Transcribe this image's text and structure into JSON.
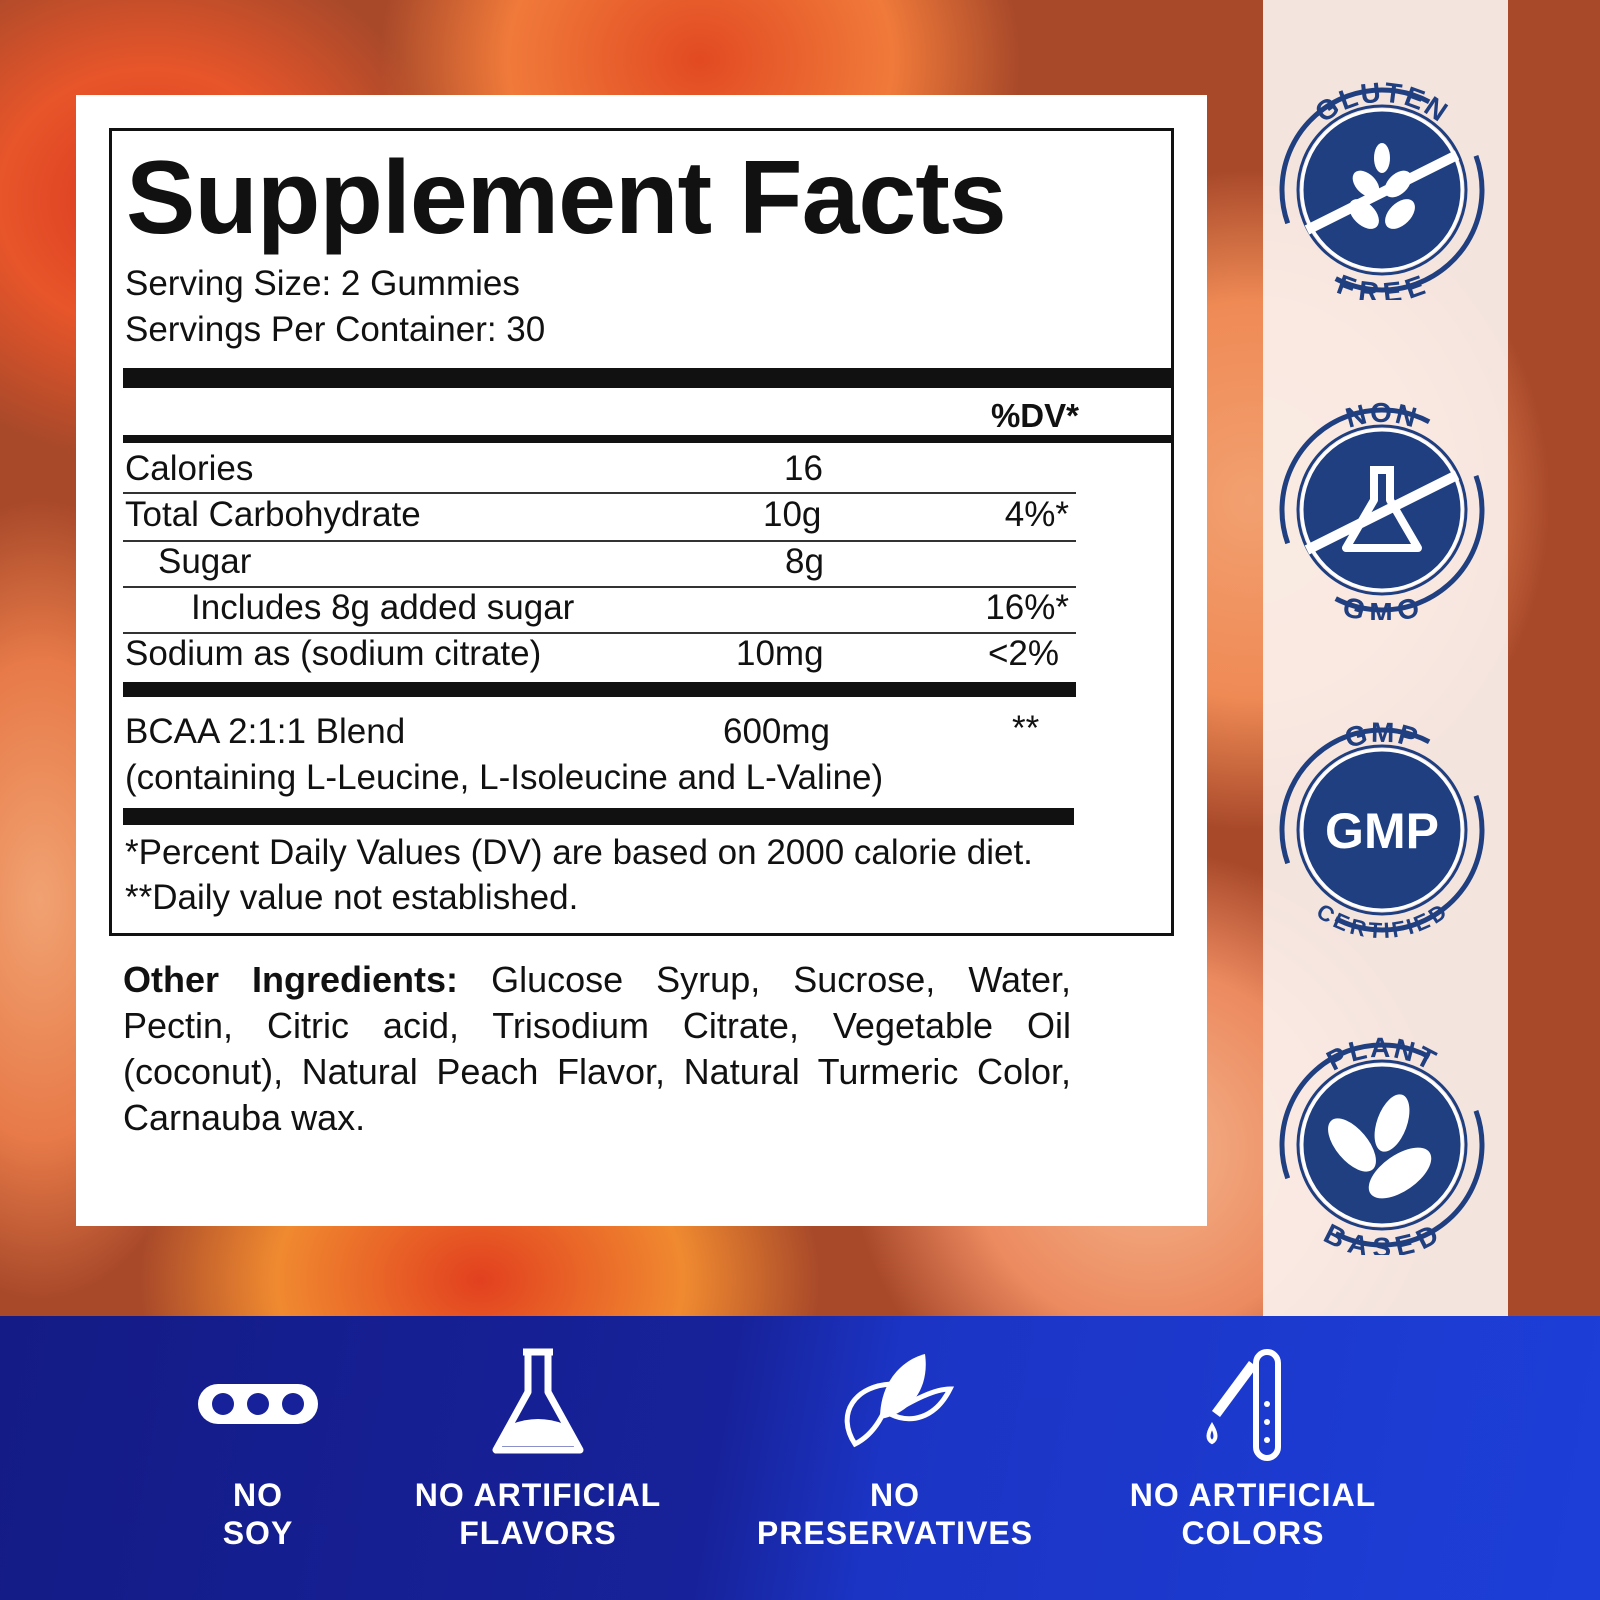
{
  "facts": {
    "title": "Supplement Facts",
    "serving_size": "Serving Size: 2 Gummies",
    "servings_per_container": "Servings Per Container: 30",
    "dv_header": "%DV*",
    "rows": [
      {
        "name": "Calories",
        "amount": "16",
        "dv": ""
      },
      {
        "name": "Total Carbohydrate",
        "amount": "10g",
        "dv": "4%*"
      },
      {
        "name": "Sugar",
        "amount": "8g",
        "dv": ""
      },
      {
        "name": "Includes 8g added sugar",
        "amount": "",
        "dv": "16%*"
      },
      {
        "name": "Sodium as (sodium citrate)",
        "amount": "10mg",
        "dv": "<2%"
      }
    ],
    "blend": {
      "name": "BCAA 2:1:1 Blend",
      "amount": "600mg",
      "dv": "**",
      "detail": "(containing L-Leucine, L-Isoleucine and L-Valine)"
    },
    "footnote1": "*Percent Daily Values (DV) are based on 2000 calorie diet.",
    "footnote2": "**Daily value not established."
  },
  "ingredients": {
    "label": "Other Ingredients:",
    "text": " Glucose Syrup, Sucrose, Water, Pectin, Citric acid, Trisodium Citrate, Vegetable Oil (coconut), Natural Peach Flavor, Natural Turmeric Color, Carnauba wax."
  },
  "badges": [
    {
      "top": "GLUTEN",
      "bottom": "FREE",
      "icon": "wheat-icon"
    },
    {
      "top": "NON",
      "bottom": "GMO",
      "icon": "flask-icon"
    },
    {
      "top": "GMP",
      "bottom": "CERTIFIED",
      "center": "GMP"
    },
    {
      "top": "PLANT",
      "bottom": "BASED",
      "icon": "leaves-icon"
    }
  ],
  "features": [
    {
      "line1": "NO",
      "line2": "SOY",
      "icon": "soy-icon"
    },
    {
      "line1": "NO ARTIFICIAL",
      "line2": "FLAVORS",
      "icon": "flask-icon"
    },
    {
      "line1": "NO",
      "line2": "PRESERVATIVES",
      "icon": "leaf-icon"
    },
    {
      "line1": "NO ARTIFICIAL",
      "line2": "COLORS",
      "icon": "dropper-icon"
    }
  ],
  "colors": {
    "badge": "#1f3f80",
    "bottom_bar": "#17229a"
  }
}
